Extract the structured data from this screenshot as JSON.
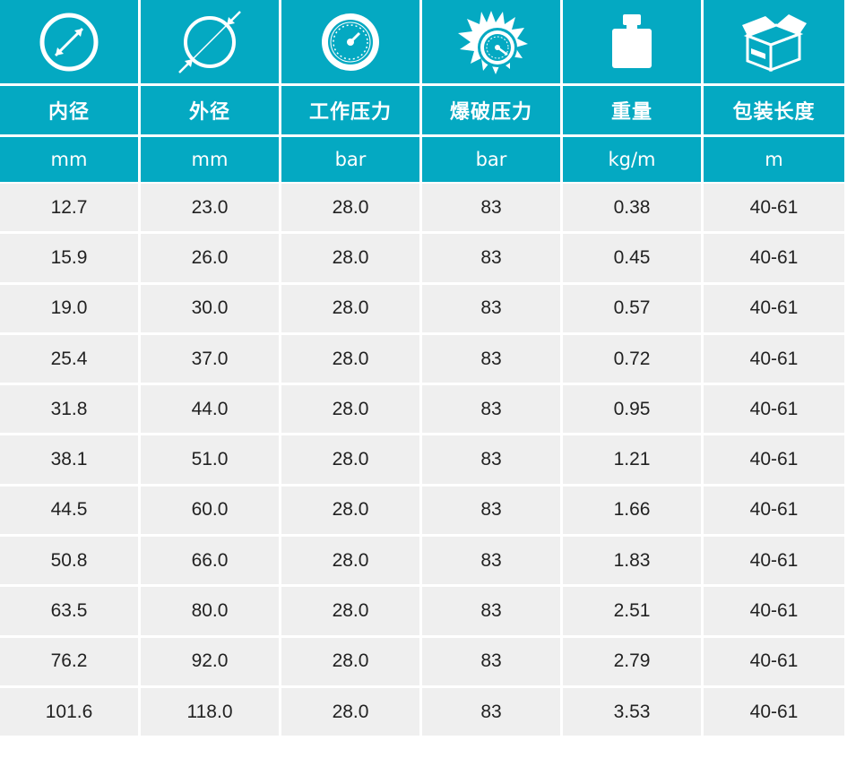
{
  "table": {
    "columns": [
      {
        "icon": "inner-diameter-icon",
        "title": "内径",
        "unit": "mm"
      },
      {
        "icon": "outer-diameter-icon",
        "title": "外径",
        "unit": "mm"
      },
      {
        "icon": "pressure-gauge-icon",
        "title": "工作压力",
        "unit": "bar"
      },
      {
        "icon": "burst-pressure-icon",
        "title": "爆破压力",
        "unit": "bar"
      },
      {
        "icon": "weight-icon",
        "title": "重量",
        "unit": "kg/m"
      },
      {
        "icon": "package-box-icon",
        "title": "包装长度",
        "unit": "m"
      }
    ],
    "rows": [
      [
        "12.7",
        "23.0",
        "28.0",
        "83",
        "0.38",
        "40-61"
      ],
      [
        "15.9",
        "26.0",
        "28.0",
        "83",
        "0.45",
        "40-61"
      ],
      [
        "19.0",
        "30.0",
        "28.0",
        "83",
        "0.57",
        "40-61"
      ],
      [
        "25.4",
        "37.0",
        "28.0",
        "83",
        "0.72",
        "40-61"
      ],
      [
        "31.8",
        "44.0",
        "28.0",
        "83",
        "0.95",
        "40-61"
      ],
      [
        "38.1",
        "51.0",
        "28.0",
        "83",
        "1.21",
        "40-61"
      ],
      [
        "44.5",
        "60.0",
        "28.0",
        "83",
        "1.66",
        "40-61"
      ],
      [
        "50.8",
        "66.0",
        "28.0",
        "83",
        "1.83",
        "40-61"
      ],
      [
        "63.5",
        "80.0",
        "28.0",
        "83",
        "2.51",
        "40-61"
      ],
      [
        "76.2",
        "92.0",
        "28.0",
        "83",
        "2.79",
        "40-61"
      ],
      [
        "101.6",
        "118.0",
        "28.0",
        "83",
        "3.53",
        "40-61"
      ]
    ]
  },
  "colors": {
    "header_bg": "#04a9c2",
    "header_text": "#ffffff",
    "row_bg": "#efefef",
    "row_text": "#222222"
  }
}
